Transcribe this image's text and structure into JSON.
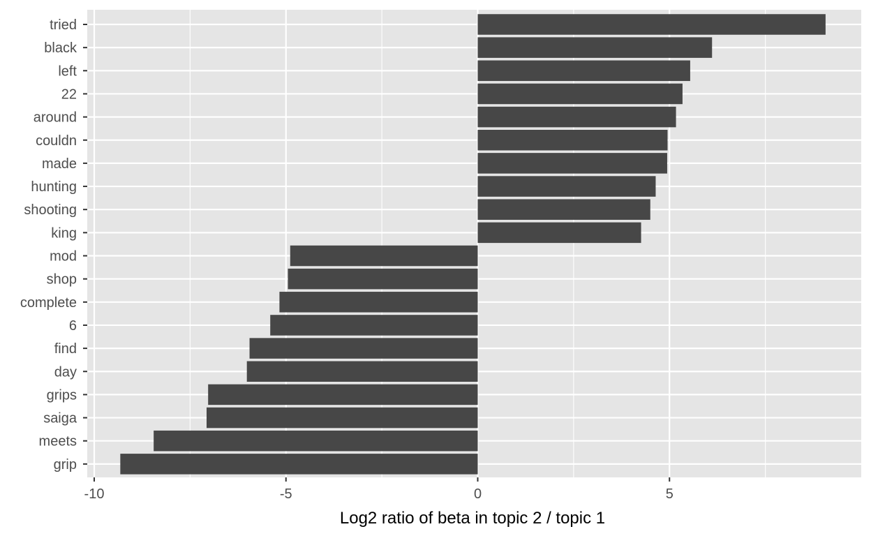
{
  "chart_data": {
    "type": "bar",
    "orientation": "horizontal",
    "categories": [
      "tried",
      "black",
      "left",
      "22",
      "around",
      "couldn",
      "made",
      "hunting",
      "shooting",
      "king",
      "mod",
      "shop",
      "complete",
      "6",
      "find",
      "day",
      "grips",
      "saiga",
      "meets",
      "grip"
    ],
    "values": [
      9.07,
      6.11,
      5.54,
      5.34,
      5.17,
      4.95,
      4.94,
      4.64,
      4.5,
      4.26,
      -4.89,
      -4.95,
      -5.17,
      -5.41,
      -5.95,
      -6.02,
      -7.03,
      -7.07,
      -8.45,
      -9.32
    ],
    "xlabel": "Log2 ratio of beta in topic 2 / topic 1",
    "ylabel": "",
    "xlim": [
      -10,
      10
    ],
    "xticks": [
      -10,
      -5,
      0,
      5
    ],
    "xtick_labels": [
      "-10",
      "-5",
      "0",
      "5"
    ],
    "grid": true,
    "colors": {
      "bar": "#474747",
      "panel": "#e5e5e5",
      "grid": "#ffffff"
    }
  }
}
